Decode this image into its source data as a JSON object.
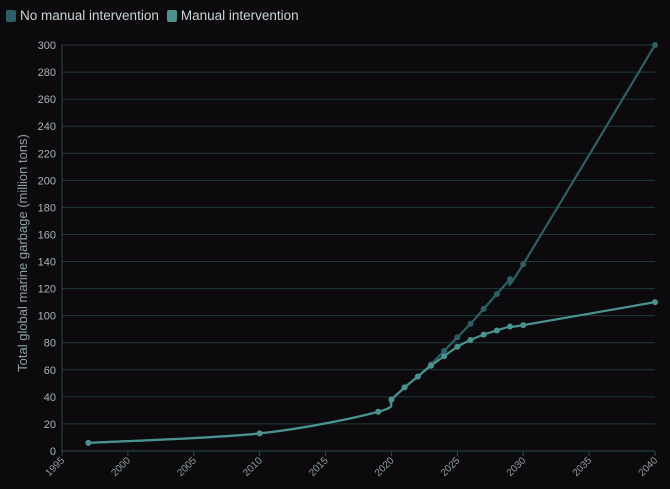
{
  "chart_data": {
    "type": "line",
    "xlabel": "",
    "ylabel": "Total global marine garbage (million tons)",
    "xlim": [
      1995,
      2040
    ],
    "ylim": [
      0,
      300
    ],
    "x_ticks": [
      1995,
      2000,
      2005,
      2010,
      2015,
      2020,
      2025,
      2030,
      2035,
      2040
    ],
    "y_ticks": [
      0,
      20,
      40,
      60,
      80,
      100,
      120,
      140,
      160,
      180,
      200,
      220,
      240,
      260,
      280,
      300
    ],
    "grid": true,
    "legend_position": "top-left",
    "series": [
      {
        "name": "No manual intervention",
        "color": "#2f5f66",
        "x": [
          1997,
          2010,
          2019,
          2020,
          2021,
          2022,
          2023,
          2024,
          2025,
          2026,
          2027,
          2028,
          2029,
          2030,
          2040
        ],
        "y": [
          6,
          13,
          29,
          38,
          47,
          55,
          64,
          74,
          84,
          94,
          105,
          116,
          127,
          138,
          300
        ]
      },
      {
        "name": "Manual intervention",
        "color": "#4a9290",
        "x": [
          1997,
          2010,
          2019,
          2020,
          2021,
          2022,
          2023,
          2024,
          2025,
          2026,
          2027,
          2028,
          2029,
          2030,
          2040
        ],
        "y": [
          6,
          13,
          29,
          38,
          47,
          55,
          63,
          70,
          77,
          82,
          86,
          89,
          92,
          93,
          110
        ]
      }
    ]
  }
}
